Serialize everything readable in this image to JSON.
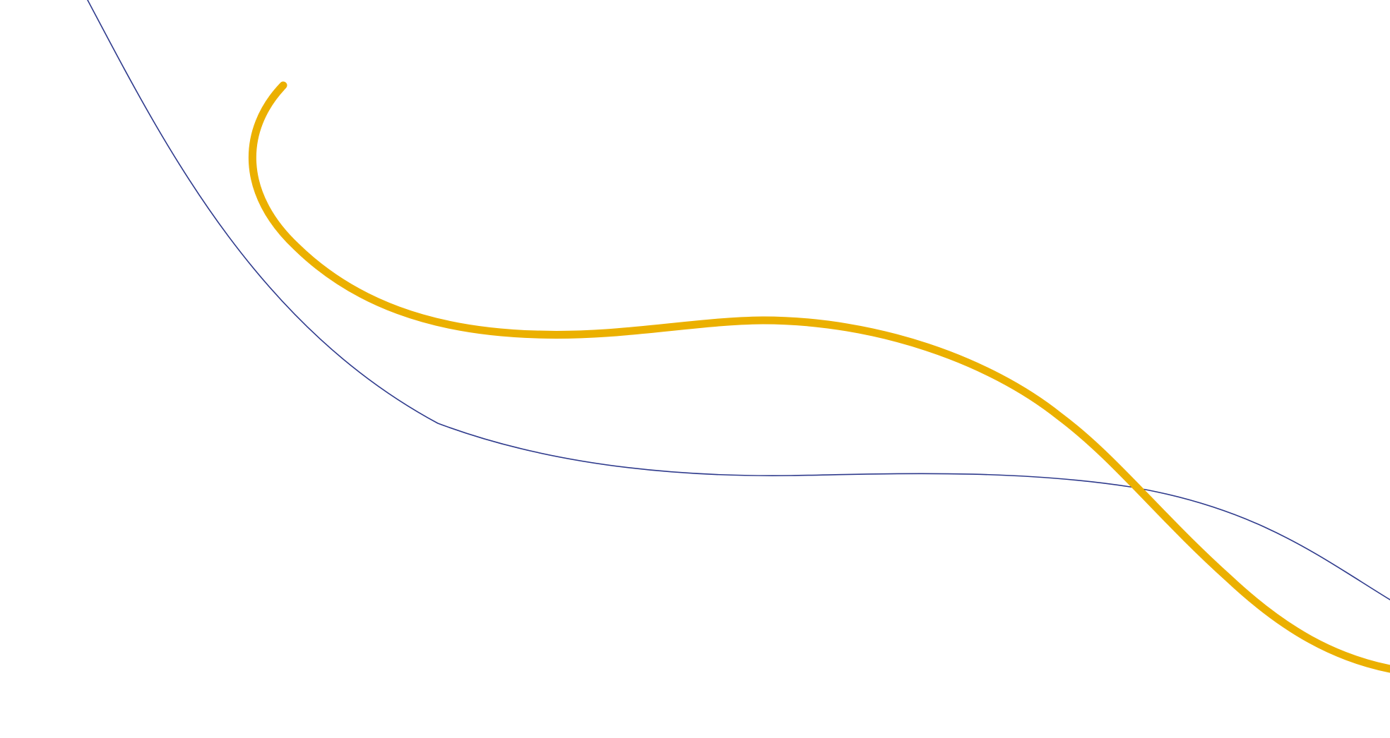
{
  "background_color": "#ffffff",
  "decorative_lines": [
    {
      "name": "navy-thin-curve",
      "color": "#2e3a8c"
    },
    {
      "name": "gold-thick-curve",
      "color": "#ebb000"
    }
  ]
}
